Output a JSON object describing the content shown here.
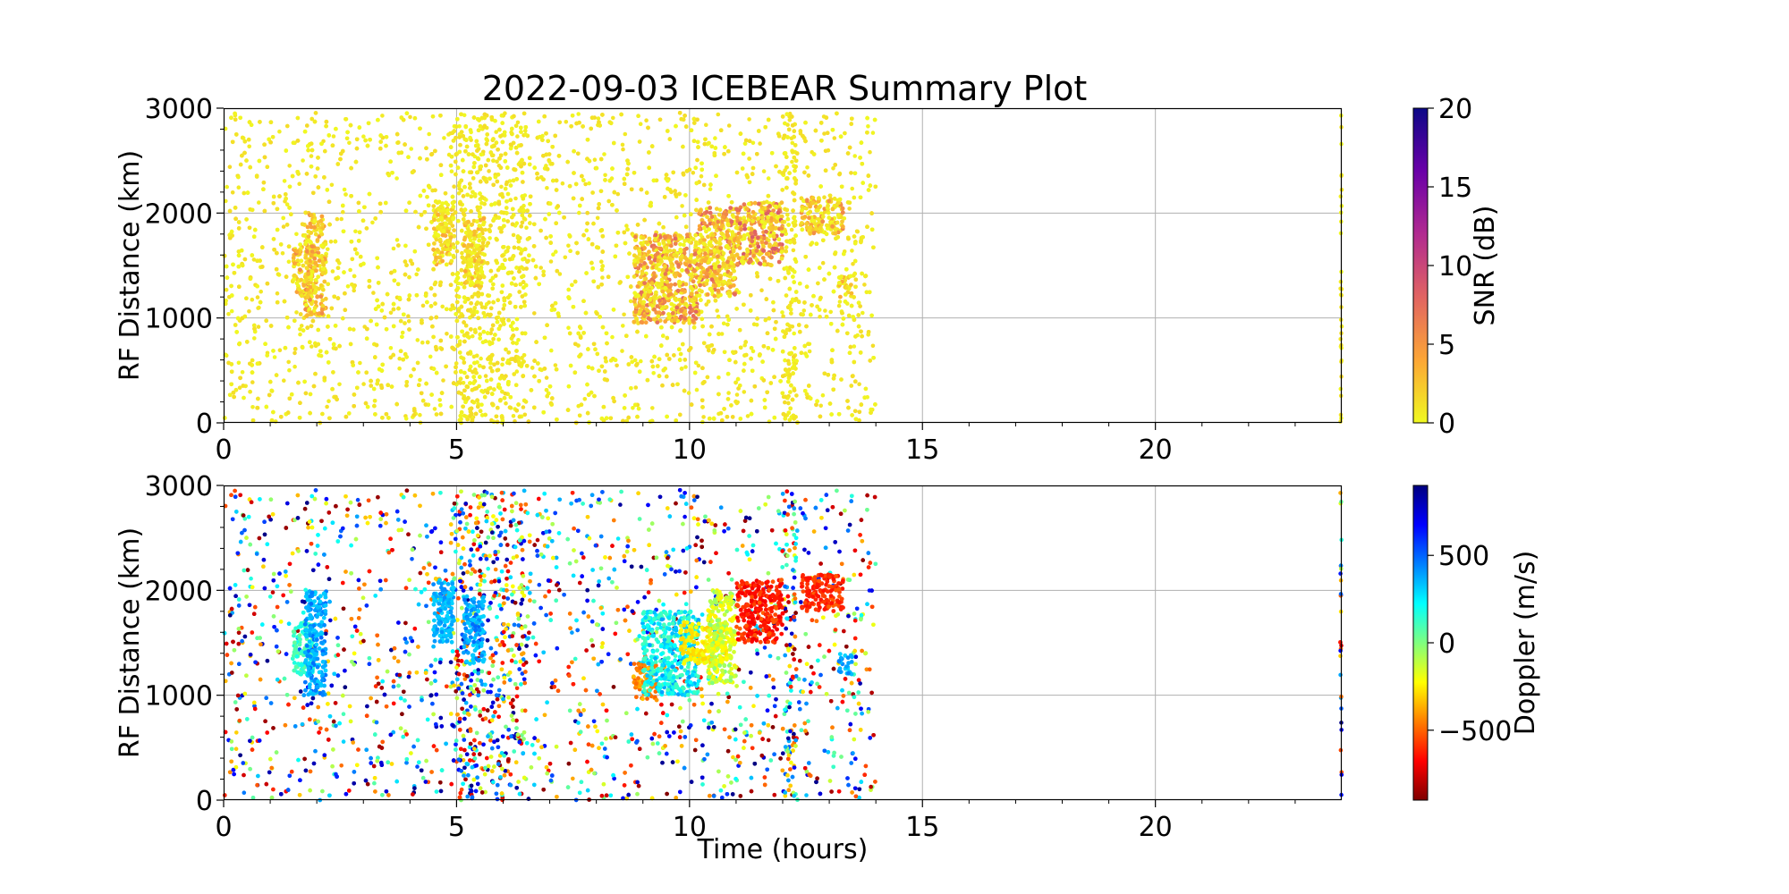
{
  "chart_data": {
    "title": "2022-09-03 ICEBEAR Summary Plot",
    "xlabel": "Time (hours)",
    "xlim": [
      0,
      24
    ],
    "x_ticks": [
      0,
      5,
      10,
      15,
      20
    ],
    "x_tick_labels": [
      "0",
      "5",
      "10",
      "15",
      "20"
    ],
    "grid": true,
    "panels": [
      {
        "id": "snr",
        "type": "scatter",
        "ylabel": "RF Distance (km)",
        "ylim": [
          0,
          3000
        ],
        "y_ticks": [
          0,
          1000,
          2000,
          3000
        ],
        "y_tick_labels": [
          "0",
          "1000",
          "2000",
          "3000"
        ],
        "colorbar": {
          "label": "SNR (dB)",
          "range": [
            0,
            20
          ],
          "ticks": [
            0,
            5,
            10,
            15,
            20
          ],
          "tick_labels": [
            "0",
            "5",
            "10",
            "15",
            "20"
          ],
          "colormap": "plasma_r",
          "stops": [
            "#f0f921",
            "#fca636",
            "#e16462",
            "#b12a90",
            "#6a00a8",
            "#0d0887"
          ]
        },
        "background": {
          "time_ranges": [
            [
              0.0,
              14.0
            ],
            [
              23.97,
              24.0
            ]
          ],
          "value_range": [
            0,
            1.5
          ]
        },
        "clusters": [
          {
            "t": [
              1.5,
              1.95
            ],
            "range": [
              1200,
              1700
            ],
            "snr": [
              0,
              6
            ]
          },
          {
            "t": [
              1.75,
              2.2
            ],
            "range": [
              1000,
              2000
            ],
            "snr": [
              0,
              6
            ]
          },
          {
            "t": [
              4.5,
              4.95
            ],
            "range": [
              1500,
              2100
            ],
            "snr": [
              0,
              4
            ]
          },
          {
            "t": [
              5.15,
              5.6
            ],
            "range": [
              1300,
              1950
            ],
            "snr": [
              0,
              4
            ]
          },
          {
            "t": [
              8.8,
              10.2
            ],
            "range": [
              950,
              1800
            ],
            "snr": [
              0,
              8
            ]
          },
          {
            "t": [
              10.2,
              11.0
            ],
            "range": [
              1200,
              2050
            ],
            "snr": [
              0,
              8
            ]
          },
          {
            "t": [
              11.0,
              12.0
            ],
            "range": [
              1500,
              2100
            ],
            "snr": [
              0,
              9
            ]
          },
          {
            "t": [
              12.4,
              13.3
            ],
            "range": [
              1800,
              2150
            ],
            "snr": [
              0,
              6
            ]
          },
          {
            "t": [
              13.2,
              13.5
            ],
            "range": [
              1200,
              1400
            ],
            "snr": [
              0,
              4
            ]
          }
        ]
      },
      {
        "id": "doppler",
        "type": "scatter",
        "ylabel": "RF Distance (km)",
        "ylim": [
          0,
          3000
        ],
        "y_ticks": [
          0,
          1000,
          2000,
          3000
        ],
        "y_tick_labels": [
          "0",
          "1000",
          "2000",
          "3000"
        ],
        "colorbar": {
          "label": "Doppler (m/s)",
          "range": [
            -900,
            900
          ],
          "ticks": [
            -500,
            0,
            500
          ],
          "tick_labels": [
            "−500",
            "0",
            "500"
          ],
          "colormap": "jet_r",
          "stops": [
            "#7f0000",
            "#ff0000",
            "#ff7f00",
            "#ffff00",
            "#7fff7f",
            "#00ffff",
            "#007fff",
            "#0000ff",
            "#00007f"
          ]
        },
        "background": {
          "time_ranges": [
            [
              0.0,
              14.0
            ],
            [
              23.97,
              24.0
            ]
          ],
          "value_range": [
            -900,
            900
          ]
        },
        "clusters": [
          {
            "t": [
              1.5,
              1.95
            ],
            "range": [
              1200,
              1700
            ],
            "doppler": [
              50,
              200
            ]
          },
          {
            "t": [
              1.75,
              2.2
            ],
            "range": [
              1000,
              2000
            ],
            "doppler": [
              300,
              500
            ]
          },
          {
            "t": [
              4.5,
              4.95
            ],
            "range": [
              1500,
              2100
            ],
            "doppler": [
              300,
              450
            ]
          },
          {
            "t": [
              5.15,
              5.6
            ],
            "range": [
              1300,
              1950
            ],
            "doppler": [
              300,
              500
            ]
          },
          {
            "t": [
              8.8,
              9.3
            ],
            "range": [
              950,
              1300
            ],
            "doppler": [
              -500,
              -300
            ]
          },
          {
            "t": [
              9.0,
              10.2
            ],
            "range": [
              1000,
              1800
            ],
            "doppler": [
              100,
              400
            ]
          },
          {
            "t": [
              9.8,
              10.8
            ],
            "range": [
              1300,
              1700
            ],
            "doppler": [
              -300,
              -150
            ]
          },
          {
            "t": [
              10.4,
              11.0
            ],
            "range": [
              1100,
              2000
            ],
            "doppler": [
              -250,
              0
            ]
          },
          {
            "t": [
              11.0,
              12.0
            ],
            "range": [
              1500,
              2100
            ],
            "doppler": [
              -700,
              -500
            ]
          },
          {
            "t": [
              12.4,
              13.3
            ],
            "range": [
              1800,
              2150
            ],
            "doppler": [
              -650,
              -500
            ]
          },
          {
            "t": [
              13.2,
              13.5
            ],
            "range": [
              1200,
              1400
            ],
            "doppler": [
              300,
              450
            ]
          }
        ]
      }
    ]
  }
}
